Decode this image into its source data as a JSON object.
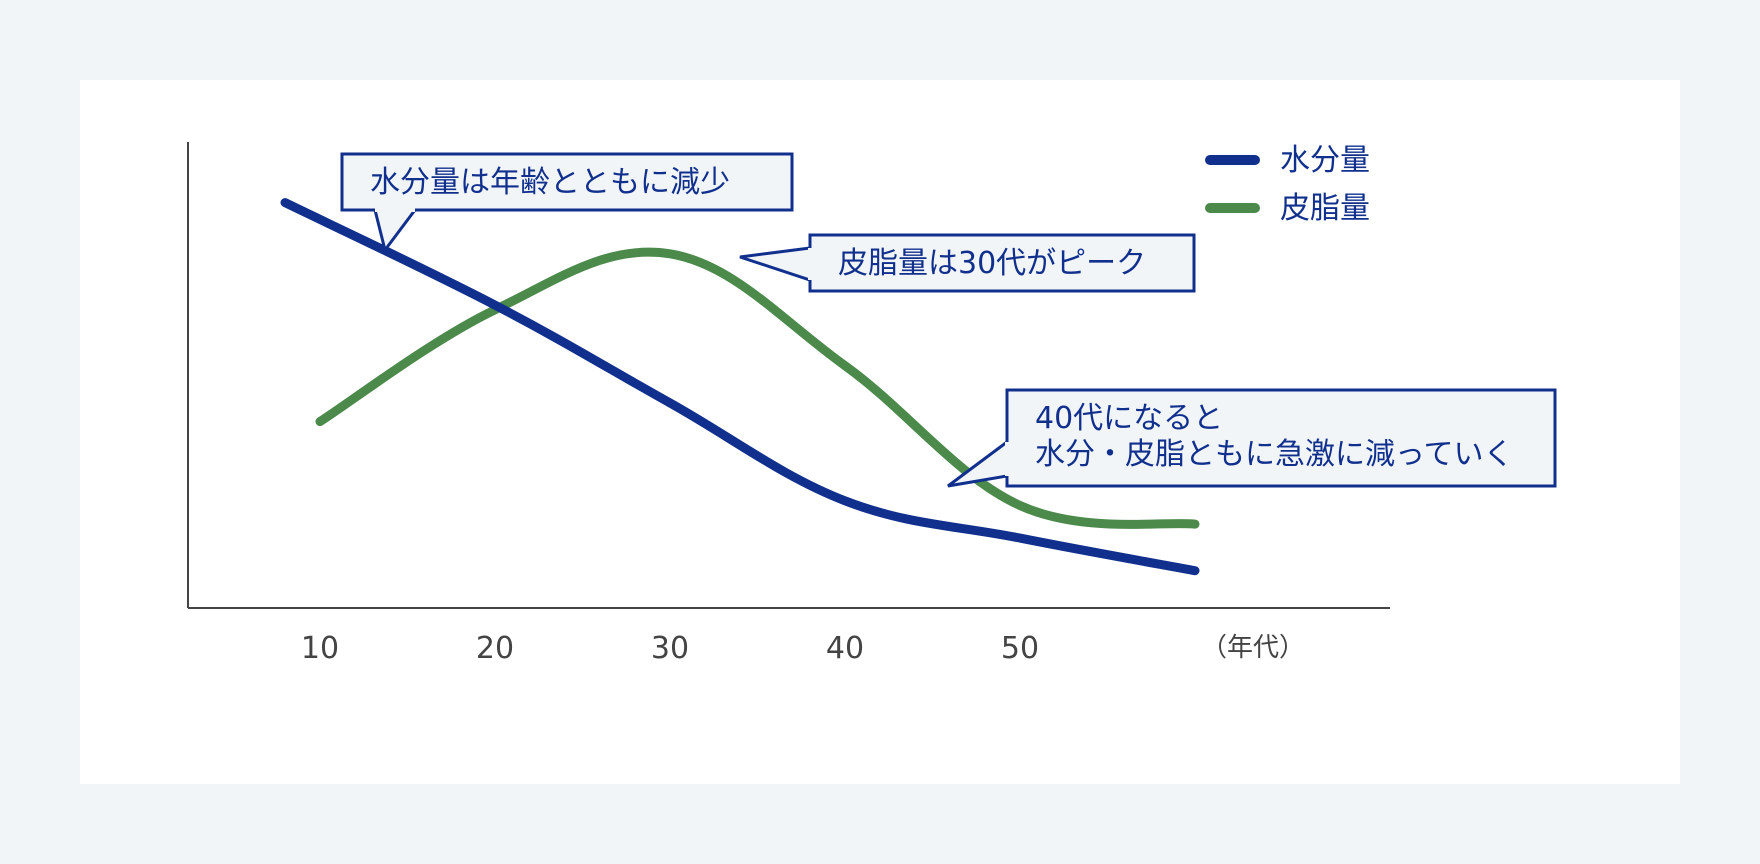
{
  "chart_data": {
    "type": "line",
    "x": [
      8,
      10,
      20,
      30,
      40,
      50,
      60
    ],
    "xticks": [
      "10",
      "20",
      "30",
      "40",
      "50"
    ],
    "xlabel": "（年代）",
    "ylim": [
      0,
      100
    ],
    "series": [
      {
        "name": "水分量",
        "color": "#11308e",
        "points": [
          [
            8,
            87
          ],
          [
            20,
            65
          ],
          [
            30,
            44
          ],
          [
            40,
            23
          ],
          [
            50,
            15
          ],
          [
            60,
            8
          ]
        ]
      },
      {
        "name": "皮脂量",
        "color": "#4b8a4b",
        "points": [
          [
            10,
            40
          ],
          [
            20,
            64
          ],
          [
            30,
            76
          ],
          [
            40,
            52
          ],
          [
            50,
            22
          ],
          [
            60,
            18
          ]
        ]
      }
    ],
    "legend": {
      "position": "top-right"
    },
    "annotations": [
      {
        "id": "water-decline",
        "lines": [
          "水分量は年齢とともに減少"
        ]
      },
      {
        "id": "sebum-peak",
        "lines": [
          "皮脂量は30代がピーク"
        ]
      },
      {
        "id": "forties-drop",
        "lines": [
          "40代になると",
          "水分・皮脂ともに急激に減っていく"
        ]
      }
    ]
  },
  "colors": {
    "background": "#f1f5f8",
    "card": "#ffffff",
    "axis": "#444444",
    "callout_fill": "#f1f5f8",
    "callout_border": "#11308e",
    "callout_text": "#11308e"
  }
}
